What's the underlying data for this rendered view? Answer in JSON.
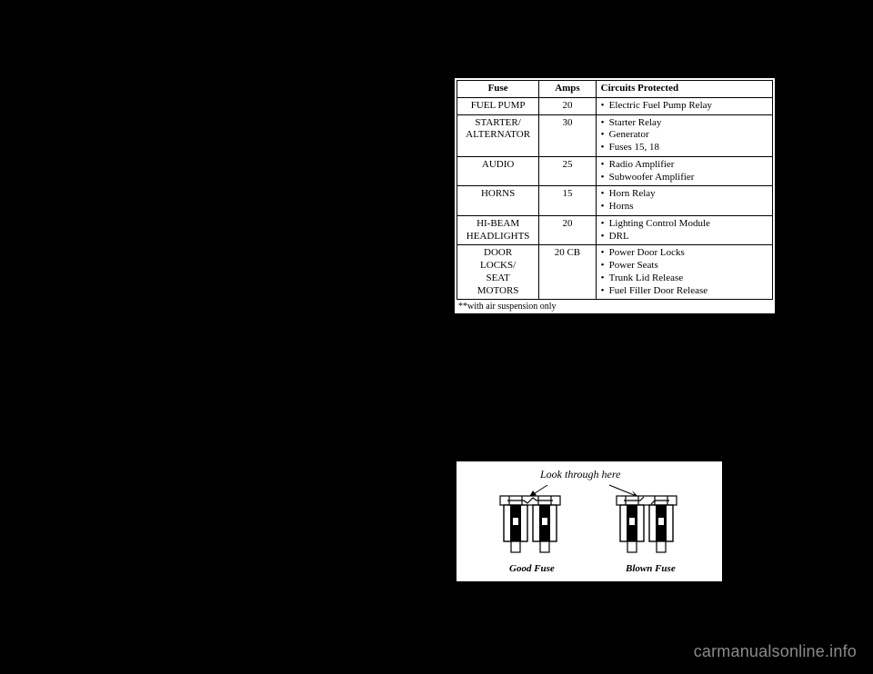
{
  "fuse_table": {
    "headers": {
      "fuse": "Fuse",
      "amps": "Amps",
      "circ": "Circuits Protected"
    },
    "rows": [
      {
        "fuse": "FUEL PUMP",
        "amps": "20",
        "circuits": [
          "Electric Fuel Pump Relay"
        ]
      },
      {
        "fuse": "STARTER/\nALTERNATOR",
        "amps": "30",
        "circuits": [
          "Starter Relay",
          "Generator",
          "Fuses 15, 18"
        ]
      },
      {
        "fuse": "AUDIO",
        "amps": "25",
        "circuits": [
          "Radio Amplifier",
          "Subwoofer Amplifier"
        ]
      },
      {
        "fuse": "HORNS",
        "amps": "15",
        "circuits": [
          "Horn Relay",
          "Horns"
        ]
      },
      {
        "fuse": "HI-BEAM\nHEADLIGHTS",
        "amps": "20",
        "circuits": [
          "Lighting Control Module",
          "DRL"
        ]
      },
      {
        "fuse": "DOOR\nLOCKS/\nSEAT\nMOTORS",
        "amps": "20 CB",
        "circuits": [
          "Power Door Locks",
          "Power Seats",
          "Trunk Lid Release",
          "Fuel Filler Door Release"
        ]
      }
    ],
    "footnote": "**with air suspension only"
  },
  "fuse_diagram": {
    "look_label": "Look through here",
    "good_label": "Good Fuse",
    "blown_label": "Blown Fuse"
  },
  "watermark": "carmanualsonline.info"
}
